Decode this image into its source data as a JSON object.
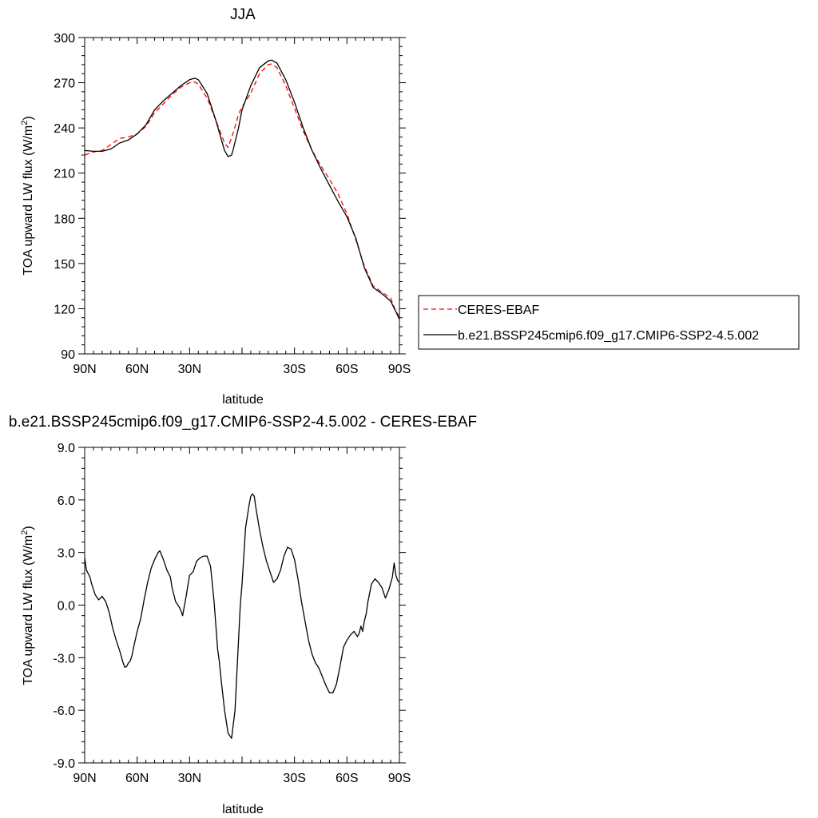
{
  "chart_data": [
    {
      "type": "line",
      "title": "JJA",
      "xlabel": "latitude",
      "ylabel_main": "TOA upward LW flux (W/m",
      "ylabel_sup": "2",
      "ylabel_close": ")",
      "xlim": [
        -90,
        90
      ],
      "ylim": [
        90,
        300
      ],
      "xtick_values": [
        -90,
        -60,
        -30,
        0,
        30,
        60,
        90
      ],
      "xticks": [
        "90N",
        "60N",
        "30N",
        "",
        "30S",
        "60S",
        "90S"
      ],
      "yticks": [
        "90",
        "120",
        "150",
        "180",
        "210",
        "240",
        "270",
        "300"
      ],
      "ytick_values": [
        90,
        120,
        150,
        180,
        210,
        240,
        270,
        300
      ],
      "legend_position": "right",
      "series": [
        {
          "name": "CERES-EBAF",
          "color": "#ff0000",
          "dash": "dashed",
          "x": [
            -90,
            -85,
            -80,
            -75,
            -70,
            -65,
            -60,
            -55,
            -50,
            -45,
            -40,
            -35,
            -30,
            -27,
            -25,
            -20,
            -15,
            -10,
            -8,
            -5,
            -2,
            0,
            5,
            10,
            15,
            17,
            20,
            25,
            30,
            35,
            40,
            45,
            50,
            55,
            60,
            65,
            70,
            75,
            80,
            85,
            88,
            90
          ],
          "y": [
            222,
            224,
            225,
            229,
            233,
            234,
            236,
            241,
            250,
            256,
            262,
            267,
            270,
            270.5,
            269,
            260,
            245,
            230,
            227,
            237,
            249,
            254,
            263,
            276,
            282,
            282.5,
            280,
            268,
            253,
            238,
            225,
            215,
            206,
            196,
            183,
            166,
            148,
            135,
            131,
            127,
            118,
            115
          ]
        },
        {
          "name": "b.e21.BSSP245cmip6.f09_g17.CMIP6-SSP2-4.5.002",
          "color": "#000000",
          "dash": "solid",
          "x": [
            -90,
            -85,
            -80,
            -75,
            -70,
            -65,
            -60,
            -55,
            -50,
            -45,
            -40,
            -35,
            -30,
            -27,
            -25,
            -20,
            -15,
            -10,
            -8,
            -6,
            -5,
            -2,
            0,
            5,
            10,
            15,
            17,
            20,
            25,
            30,
            35,
            40,
            45,
            50,
            55,
            60,
            65,
            70,
            75,
            80,
            85,
            88,
            90
          ],
          "y": [
            225,
            224.5,
            224.5,
            226,
            230,
            232,
            236,
            242,
            252,
            258,
            263,
            268,
            272,
            273,
            272,
            263,
            245,
            225,
            221,
            222,
            226,
            240,
            252,
            268,
            280,
            284.5,
            285,
            283,
            272,
            257,
            240,
            225,
            213,
            202,
            191,
            181,
            167,
            147,
            134,
            130,
            125,
            118,
            113
          ]
        }
      ]
    },
    {
      "type": "line",
      "title": "b.e21.BSSP245cmip6.f09_g17.CMIP6-SSP2-4.5.002 - CERES-EBAF",
      "xlabel": "latitude",
      "ylabel_main": "TOA upward LW flux (W/m",
      "ylabel_sup": "2",
      "ylabel_close": ")",
      "xlim": [
        -90,
        90
      ],
      "ylim": [
        -9,
        9
      ],
      "xtick_values": [
        -90,
        -60,
        -30,
        0,
        30,
        60,
        90
      ],
      "xticks": [
        "90N",
        "60N",
        "30N",
        "",
        "30S",
        "60S",
        "90S"
      ],
      "yticks": [
        "-9.0",
        "-6.0",
        "-3.0",
        "0.0",
        "3.0",
        "6.0",
        "9.0"
      ],
      "ytick_values": [
        -9,
        -6,
        -3,
        0,
        3,
        6,
        9
      ],
      "series": [
        {
          "name": "",
          "color": "#000000",
          "dash": "solid",
          "x": [
            -90,
            -89,
            -88,
            -87,
            -86,
            -84,
            -82,
            -80,
            -78,
            -76,
            -74,
            -72,
            -70,
            -68,
            -67,
            -66,
            -65,
            -64,
            -63,
            -62,
            -60,
            -58,
            -56,
            -54,
            -52,
            -50,
            -48,
            -47,
            -45,
            -43,
            -41,
            -40,
            -38,
            -36,
            -35,
            -34,
            -32,
            -30,
            -28,
            -26,
            -24,
            -22,
            -20,
            -18,
            -16,
            -14,
            -13,
            -12,
            -10,
            -8,
            -6,
            -4,
            -3,
            -2,
            -1,
            0,
            2,
            4,
            5,
            6,
            7,
            8,
            10,
            12,
            14,
            16,
            18,
            20,
            22,
            24,
            26,
            28,
            30,
            32,
            34,
            36,
            38,
            40,
            42,
            44,
            46,
            48,
            50,
            52,
            54,
            56,
            58,
            60,
            62,
            64,
            66,
            67,
            68,
            69,
            70,
            71,
            72,
            74,
            76,
            78,
            80,
            82,
            84,
            86,
            87,
            88,
            89,
            90
          ],
          "y": [
            2.7,
            2.0,
            1.8,
            1.6,
            1.2,
            0.6,
            0.3,
            0.5,
            0.2,
            -0.4,
            -1.3,
            -2.0,
            -2.6,
            -3.3,
            -3.55,
            -3.5,
            -3.3,
            -3.2,
            -2.9,
            -2.4,
            -1.5,
            -0.8,
            0.3,
            1.3,
            2.1,
            2.6,
            3.0,
            3.1,
            2.6,
            2.0,
            1.6,
            1.0,
            0.2,
            -0.1,
            -0.3,
            -0.6,
            0.5,
            1.7,
            1.9,
            2.5,
            2.7,
            2.8,
            2.8,
            2.2,
            0.2,
            -2.5,
            -3.2,
            -4.2,
            -6.0,
            -7.3,
            -7.6,
            -6.0,
            -4.0,
            -2.0,
            0.0,
            1.2,
            4.4,
            5.7,
            6.2,
            6.35,
            6.2,
            5.5,
            4.3,
            3.3,
            2.5,
            1.9,
            1.3,
            1.5,
            2.0,
            2.8,
            3.3,
            3.2,
            2.6,
            1.5,
            0.2,
            -0.9,
            -2.0,
            -2.8,
            -3.3,
            -3.6,
            -4.1,
            -4.6,
            -5.0,
            -5.0,
            -4.5,
            -3.5,
            -2.4,
            -2.0,
            -1.7,
            -1.5,
            -1.8,
            -1.6,
            -1.2,
            -1.5,
            -0.9,
            -0.5,
            0.2,
            1.2,
            1.5,
            1.3,
            1.0,
            0.4,
            0.9,
            1.6,
            2.4,
            1.7,
            1.4,
            1.3
          ]
        }
      ]
    }
  ]
}
